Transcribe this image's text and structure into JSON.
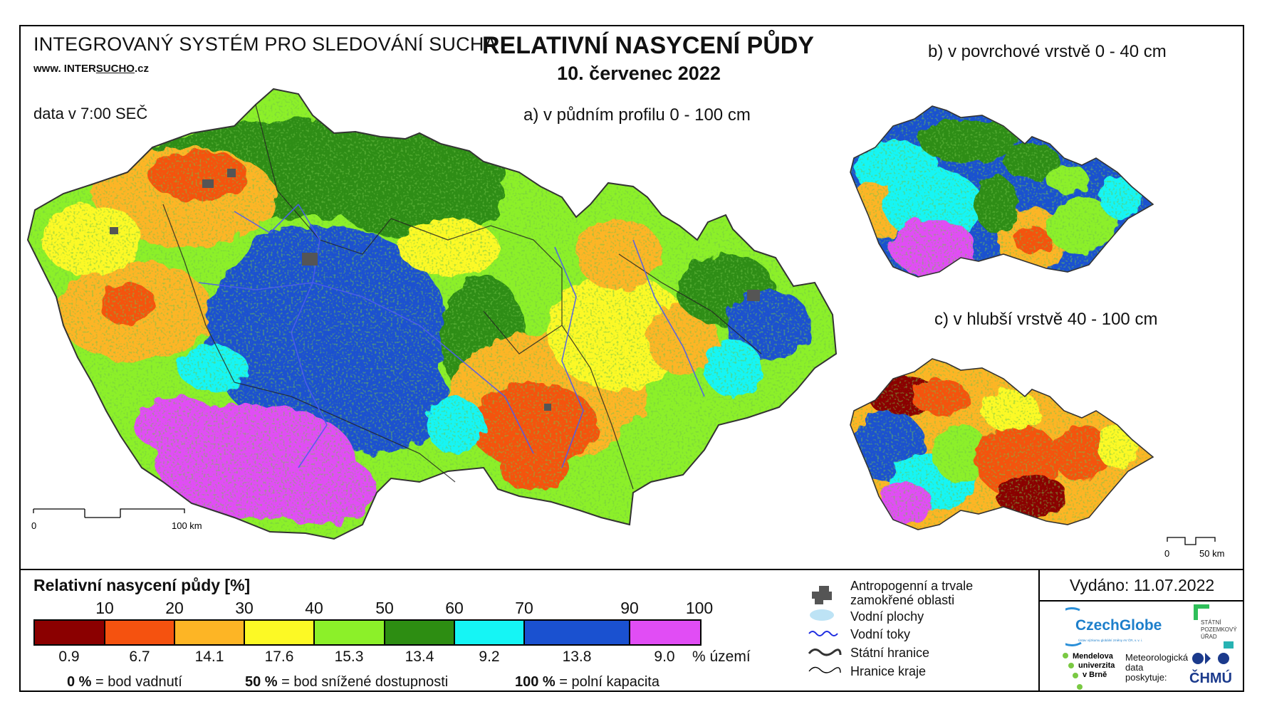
{
  "header": {
    "system_title": "INTEGROVANÝ SYSTÉM PRO SLEDOVÁNÍ SUCHA",
    "url_prefix": "www. INTER",
    "url_mid": "SUCHO",
    "url_suffix": ".cz",
    "data_time": "data v 7:00 SEČ",
    "main_title": "RELATIVNÍ NASYCENÍ PŮDY",
    "date": "10. červenec 2022"
  },
  "maps": {
    "a_title": "a) v půdním profilu 0 - 100 cm",
    "b_title": "b) v povrchové vrstvě 0 - 40 cm",
    "c_title": "c) v hlubší vrstvě 40 - 100 cm",
    "scale_a": {
      "start": "0",
      "end": "100 km"
    },
    "scale_c": {
      "start": "0",
      "end": "50 km"
    }
  },
  "legend": {
    "title": "Relativní nasycení půdy [%]",
    "ticks": [
      "10",
      "20",
      "30",
      "40",
      "50",
      "60",
      "70",
      "90",
      "100"
    ],
    "bins": [
      {
        "color": "#8b0000",
        "pct": "0.9"
      },
      {
        "color": "#f5520f",
        "pct": "6.7"
      },
      {
        "color": "#fdb525",
        "pct": "14.1"
      },
      {
        "color": "#fcf925",
        "pct": "17.6"
      },
      {
        "color": "#8cf029",
        "pct": "15.3"
      },
      {
        "color": "#2d8d12",
        "pct": "13.4"
      },
      {
        "color": "#15f5f5",
        "pct": "9.2"
      },
      {
        "color": "#1a51d0",
        "pct": "13.8"
      },
      {
        "color": "#e14df5",
        "pct": "9.0"
      }
    ],
    "pct_unit": "% území",
    "note_0_value": "0 %",
    "note_0_text": "= bod vadnutí",
    "note_50_value": "50 %",
    "note_50_text": "= bod snížené dostupnosti",
    "note_100_value": "100 %",
    "note_100_text": "= polní kapacita",
    "symbols": {
      "anthropogenic": "Antropogenní a trvale",
      "anthropogenic2": "zamokřené oblasti",
      "water_bodies": "Vodní plochy",
      "rivers": "Vodní toky",
      "state_border": "Státní hranice",
      "region_border": "Hranice kraje"
    },
    "issued": "Vydáno: 11.07.2022",
    "logos": {
      "czechglobe": "CzechGlobe",
      "czechglobe_sub": "Ústav výzkumu globální změny AV ČR, v. v. i.",
      "spu_1": "STÁTNÍ",
      "spu_2": "POZEMKOVÝ",
      "spu_3": "ÚŘAD",
      "mendel_1": "Mendelova",
      "mendel_2": "univerzita",
      "mendel_3": "v Brně",
      "met_1": "Meteorologická",
      "met_2": "data",
      "met_3": "poskytuje:",
      "chmu": "ČHMÚ"
    }
  }
}
